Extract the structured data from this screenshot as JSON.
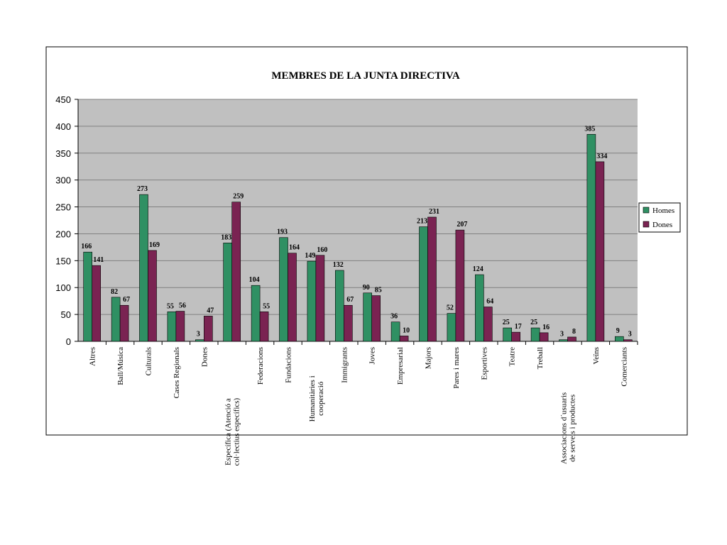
{
  "chart_data": {
    "type": "bar",
    "title": "MEMBRES DE LA JUNTA DIRECTIVA",
    "categories": [
      "Altres",
      "Ball/Música",
      "Culturals",
      "Cases Regionals",
      "Dones",
      "Específica (Atenció a col·lectius específics)",
      "Federacions",
      "Fundacions",
      "Humanitàries i cooperació",
      "Immigrants",
      "Joves",
      "Empresarial",
      "Majors",
      "Pares i mares",
      "Esportives",
      "Teatre",
      "Treball",
      "Associacions d´usuaris de serveis i productes",
      "Veïns",
      "Comerciants"
    ],
    "series": [
      {
        "name": "Homes",
        "color": "#2f9063",
        "values": [
          166,
          82,
          273,
          55,
          3,
          183,
          104,
          193,
          149,
          132,
          90,
          36,
          213,
          52,
          124,
          25,
          25,
          3,
          385,
          9
        ]
      },
      {
        "name": "Dones",
        "color": "#7a2352",
        "values": [
          141,
          67,
          169,
          56,
          47,
          259,
          55,
          164,
          160,
          67,
          85,
          10,
          231,
          207,
          64,
          17,
          16,
          8,
          334,
          3
        ]
      }
    ],
    "ylim": [
      0,
      450
    ],
    "yticks": [
      0,
      50,
      100,
      150,
      200,
      250,
      300,
      350,
      400,
      450
    ],
    "grid": true,
    "legend": "right"
  }
}
